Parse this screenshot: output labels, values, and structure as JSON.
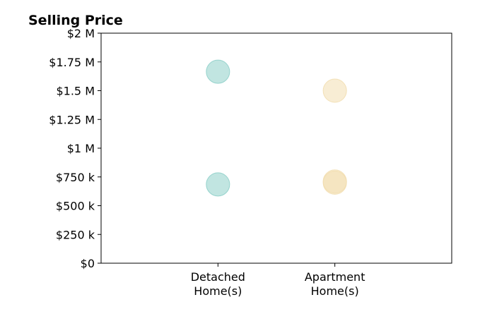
{
  "chart_data": {
    "type": "scatter",
    "title": "Selling Price",
    "xlabel": "",
    "ylabel": "",
    "categories": [
      [
        "Detached",
        "Home(s)"
      ],
      [
        "Apartment",
        "Home(s)"
      ]
    ],
    "x_range": [
      -1,
      2
    ],
    "ylim": [
      0,
      2000000
    ],
    "y_ticks": [
      {
        "value": 0,
        "label": "$0"
      },
      {
        "value": 250000,
        "label": "$250 k"
      },
      {
        "value": 500000,
        "label": "$500 k"
      },
      {
        "value": 750000,
        "label": "$750 k"
      },
      {
        "value": 1000000,
        "label": "$1 M"
      },
      {
        "value": 1250000,
        "label": "$1.25 M"
      },
      {
        "value": 1500000,
        "label": "$1.5 M"
      },
      {
        "value": 1750000,
        "label": "$1.75 M"
      },
      {
        "value": 2000000,
        "label": "$2 M"
      }
    ],
    "grid": false,
    "points": [
      {
        "category": 0,
        "y": 1665000,
        "color": "#8ecfc9",
        "opacity": 0.55
      },
      {
        "category": 0,
        "y": 685000,
        "color": "#8ecfc9",
        "opacity": 0.55
      },
      {
        "category": 1,
        "y": 1500000,
        "color": "#f2deb0",
        "opacity": 0.55
      },
      {
        "category": 1,
        "y": 700000,
        "color": "#f2deb0",
        "opacity": 0.55
      },
      {
        "category": 1,
        "y": 710000,
        "color": "#f2deb0",
        "opacity": 0.55
      }
    ]
  }
}
